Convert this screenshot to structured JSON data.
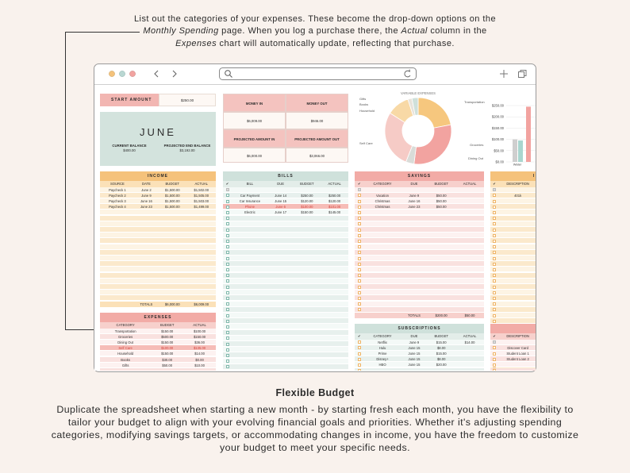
{
  "top_note": [
    {
      "text": "List out the categories of your expenses. These become the drop-down options on the "
    },
    {
      "text": "Monthly Spending",
      "italic": true
    },
    {
      "text": " page. When you log a purchase there, the "
    },
    {
      "text": "Actual",
      "italic": true
    },
    {
      "text": " column in the "
    },
    {
      "text": "Expenses",
      "italic": true
    },
    {
      "text": " chart will automatically update, reflecting that purchase."
    }
  ],
  "bottom": {
    "title": "Flexible Budget",
    "text": "Duplicate the spreadsheet when starting a new month - by starting fresh each month, you have the flexibility to tailor your budget to align with your evolving financial goals and priorities. Whether it's adjusting spending categories, modifying savings targets, or accommodating changes in income, you have the freedom to customize your budget to meet your specific needs."
  },
  "sheet": {
    "start_amount": {
      "label": "START AMOUNT",
      "value": "$250.00"
    },
    "month": {
      "name": "JUNE",
      "current_balance_label": "CURRENT BALANCE",
      "current_balance": "$400.00",
      "projected_label": "PROJECTED END BALANCE",
      "projected": "$3,192.00"
    },
    "summary": [
      [
        "MONEY IN",
        "MONEY OUT"
      ],
      [
        "$6,009.00",
        "$946.00"
      ],
      [
        "PROJECTED AMOUNT IN",
        "PROJECTED AMOUNT OUT"
      ],
      [
        "$6,000.00",
        "$3,066.00"
      ]
    ],
    "tables": [
      {
        "title": "INCOME",
        "headers": [
          "SOURCE",
          "DATE",
          "BUDGET",
          "ACTUAL"
        ],
        "rows": [
          [
            "Paycheck 1",
            "June 2",
            "$1,500.00",
            "$1,502.00"
          ],
          [
            "Paycheck 2",
            "June 9",
            "$1,500.00",
            "$1,505.00"
          ],
          [
            "Paycheck 3",
            "June 16",
            "$1,500.00",
            "$1,503.00"
          ],
          [
            "Paycheck 4",
            "June 23",
            "$1,500.00",
            "$1,499.00"
          ]
        ],
        "totals": [
          "TOTALS",
          "$6,000.00",
          "$6,009.00"
        ]
      },
      {
        "title": "BILLS",
        "headers": [
          "✔",
          "BILL",
          "DUE",
          "BUDGET",
          "ACTUAL"
        ],
        "rows": [
          [
            "Car Payment",
            "June 14",
            "$250.00",
            "$250.00"
          ],
          [
            "Car Insurance",
            "June 15",
            "$120.00",
            "$120.00"
          ],
          [
            "Phone",
            "June 6",
            "$100.00",
            "$101.00"
          ],
          [
            "Electric",
            "June 17",
            "$150.00",
            "$145.00"
          ]
        ]
      },
      {
        "title": "SAVINGS",
        "headers": [
          "✔",
          "CATEGORY",
          "DUE",
          "BUDGET",
          "ACTUAL"
        ],
        "rows": [
          [
            "Vacation",
            "June 9",
            "$50.00"
          ],
          [
            "Christmas",
            "June 16",
            "$50.00"
          ],
          [
            "Christmas",
            "June 23",
            "$50.00"
          ]
        ],
        "totals": [
          "TOTALS",
          "$200.00",
          "$50.00"
        ]
      },
      {
        "title": "I",
        "headers": [
          "✔",
          "DESCRIPTION"
        ],
        "rows": [
          [
            "401k"
          ]
        ]
      },
      {
        "title": "EXPENSES",
        "headers": [
          "CATEGORY",
          "BUDGET",
          "ACTUAL"
        ],
        "rows": [
          [
            "Transportation",
            "$150.00",
            "$100.00"
          ],
          [
            "Groceries",
            "$500.00",
            "$150.00"
          ],
          [
            "Dining Out",
            "$150.00",
            "$36.00"
          ],
          [
            "Self Care",
            "$100.00",
            "$135.00"
          ],
          [
            "Household",
            "$150.00",
            "$14.00"
          ],
          [
            "Books",
            "$30.00",
            "$0.00"
          ],
          [
            "Gifts",
            "$50.00",
            "$10.00"
          ]
        ]
      },
      {
        "title": "SUBSCRIPTIONS",
        "headers": [
          "✔",
          "CATEGORY",
          "DUE",
          "BUDGET",
          "ACTUAL"
        ],
        "rows": [
          [
            "Netflix",
            "June 9",
            "$15.00",
            "$14.00"
          ],
          [
            "Hulu",
            "June 15",
            "$8.00"
          ],
          [
            "Prime",
            "June 15",
            "$15.00"
          ],
          [
            "Disney+",
            "June 15",
            "$8.00"
          ],
          [
            "HBO",
            "June 15",
            "$20.00"
          ]
        ]
      },
      {
        "headers": [
          "✔",
          "DESCRIPTION"
        ],
        "rows": [
          [
            "Discover Card"
          ],
          [
            "Student Loan 1"
          ],
          [
            "Student Loan 2"
          ]
        ]
      }
    ]
  },
  "chart_data": [
    {
      "type": "pie",
      "title": "VARIABLE EXPENSES",
      "donut": true,
      "categories": [
        "Transportation",
        "Groceries",
        "Dining Out",
        "Self Care",
        "Household",
        "Books",
        "Gifts"
      ],
      "values": [
        22,
        30,
        4,
        28,
        11,
        2,
        3
      ],
      "colors": [
        "#f6c77e",
        "#f2a3a0",
        "#d9dcd8",
        "#f6cbc6",
        "#f8d9a6",
        "#e8e3da",
        "#cfe0da"
      ]
    },
    {
      "type": "bar",
      "categories": [
        "Water",
        null
      ],
      "series": [
        {
          "color": "#f2a3a0",
          "values": [
            null,
            245
          ]
        },
        {
          "color": "#cfcfcf",
          "values": [
            100,
            null
          ]
        },
        {
          "color": "#a9d6cf",
          "values": [
            95,
            null
          ]
        }
      ],
      "ylim": [
        0,
        250
      ],
      "yticks": [
        {
          "value": 0,
          "label": "$0.00"
        },
        {
          "value": 50,
          "label": "$50.00"
        },
        {
          "value": 100,
          "label": "$100.00"
        },
        {
          "value": 150,
          "label": "$150.00"
        },
        {
          "value": 200,
          "label": "$200.00"
        },
        {
          "value": 250,
          "label": "$250.00"
        }
      ],
      "grid": true
    }
  ]
}
